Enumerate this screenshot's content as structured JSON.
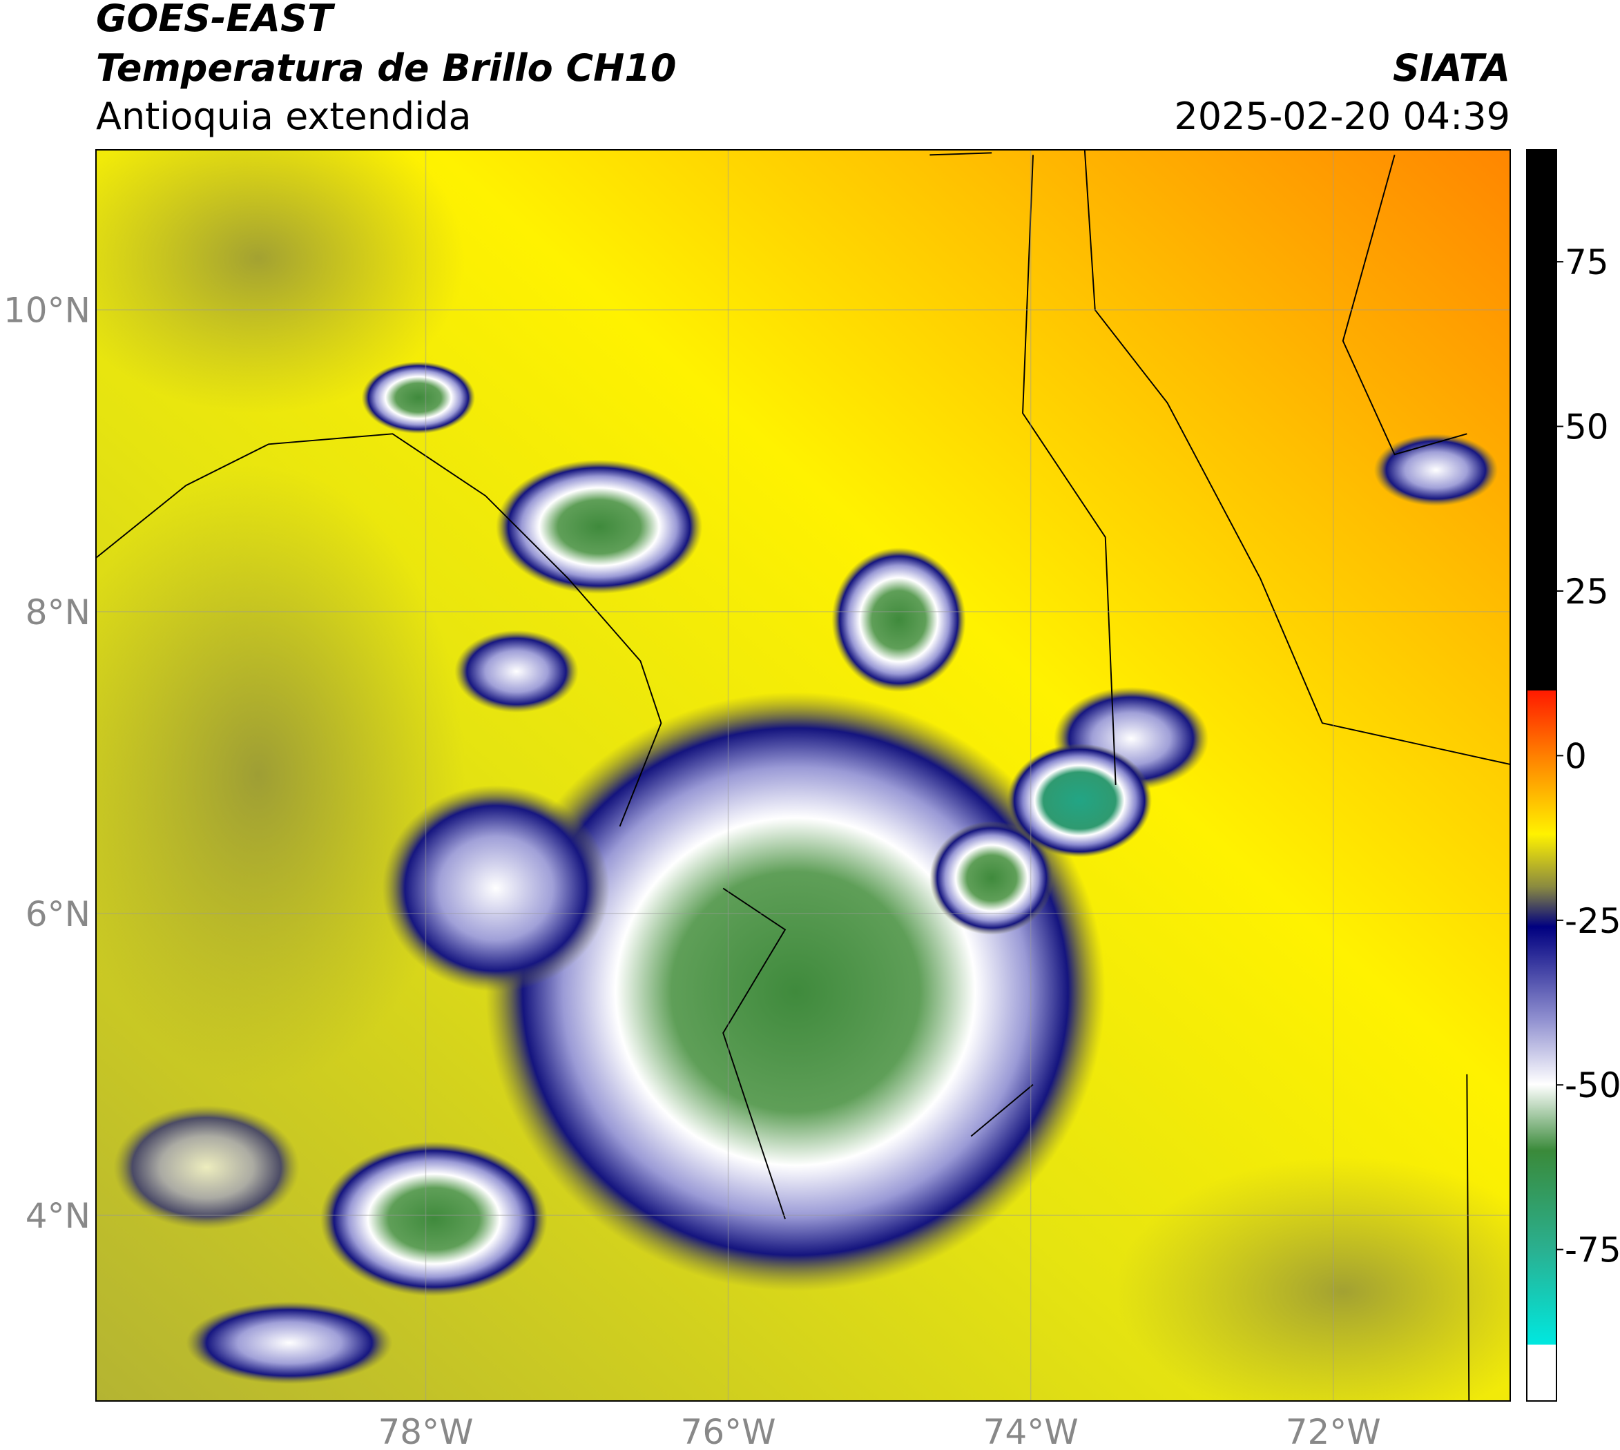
{
  "header": {
    "title": "GOES-EAST",
    "subtitle": "Temperatura de Brillo CH10",
    "region": "Antioquia extendida",
    "agency": "SIATA",
    "timestamp": "2025-02-20 04:39"
  },
  "map": {
    "xlim": [
      -80.18,
      -70.83
    ],
    "ylim": [
      2.77,
      11.06
    ],
    "xticks": [
      {
        "value": -78,
        "label": "78°W"
      },
      {
        "value": -76,
        "label": "76°W"
      },
      {
        "value": -74,
        "label": "74°W"
      },
      {
        "value": -72,
        "label": "72°W"
      }
    ],
    "yticks": [
      {
        "value": 4,
        "label": "4°N"
      },
      {
        "value": 6,
        "label": "6°N"
      },
      {
        "value": 8,
        "label": "8°N"
      },
      {
        "value": 10,
        "label": "10°N"
      }
    ]
  },
  "colorbar": {
    "lim": [
      -98,
      92
    ],
    "ticks": [
      -75,
      -50,
      -25,
      0,
      25,
      50,
      75
    ]
  }
}
